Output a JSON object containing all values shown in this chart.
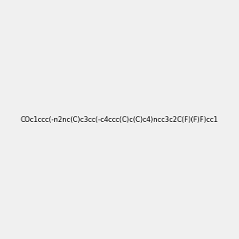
{
  "smiles": "COc1ccc(-n2nc(C)c3cc(-c4ccc(C)c(C)c4)ncc3c2C(F)(F)F)cc1",
  "title": "",
  "background_color": "#f0f0f0",
  "atom_color_map": {
    "N": "#0000ff",
    "F": "#ff00ff",
    "O": "#ff4400"
  },
  "figsize": [
    3.0,
    3.0
  ],
  "dpi": 100
}
